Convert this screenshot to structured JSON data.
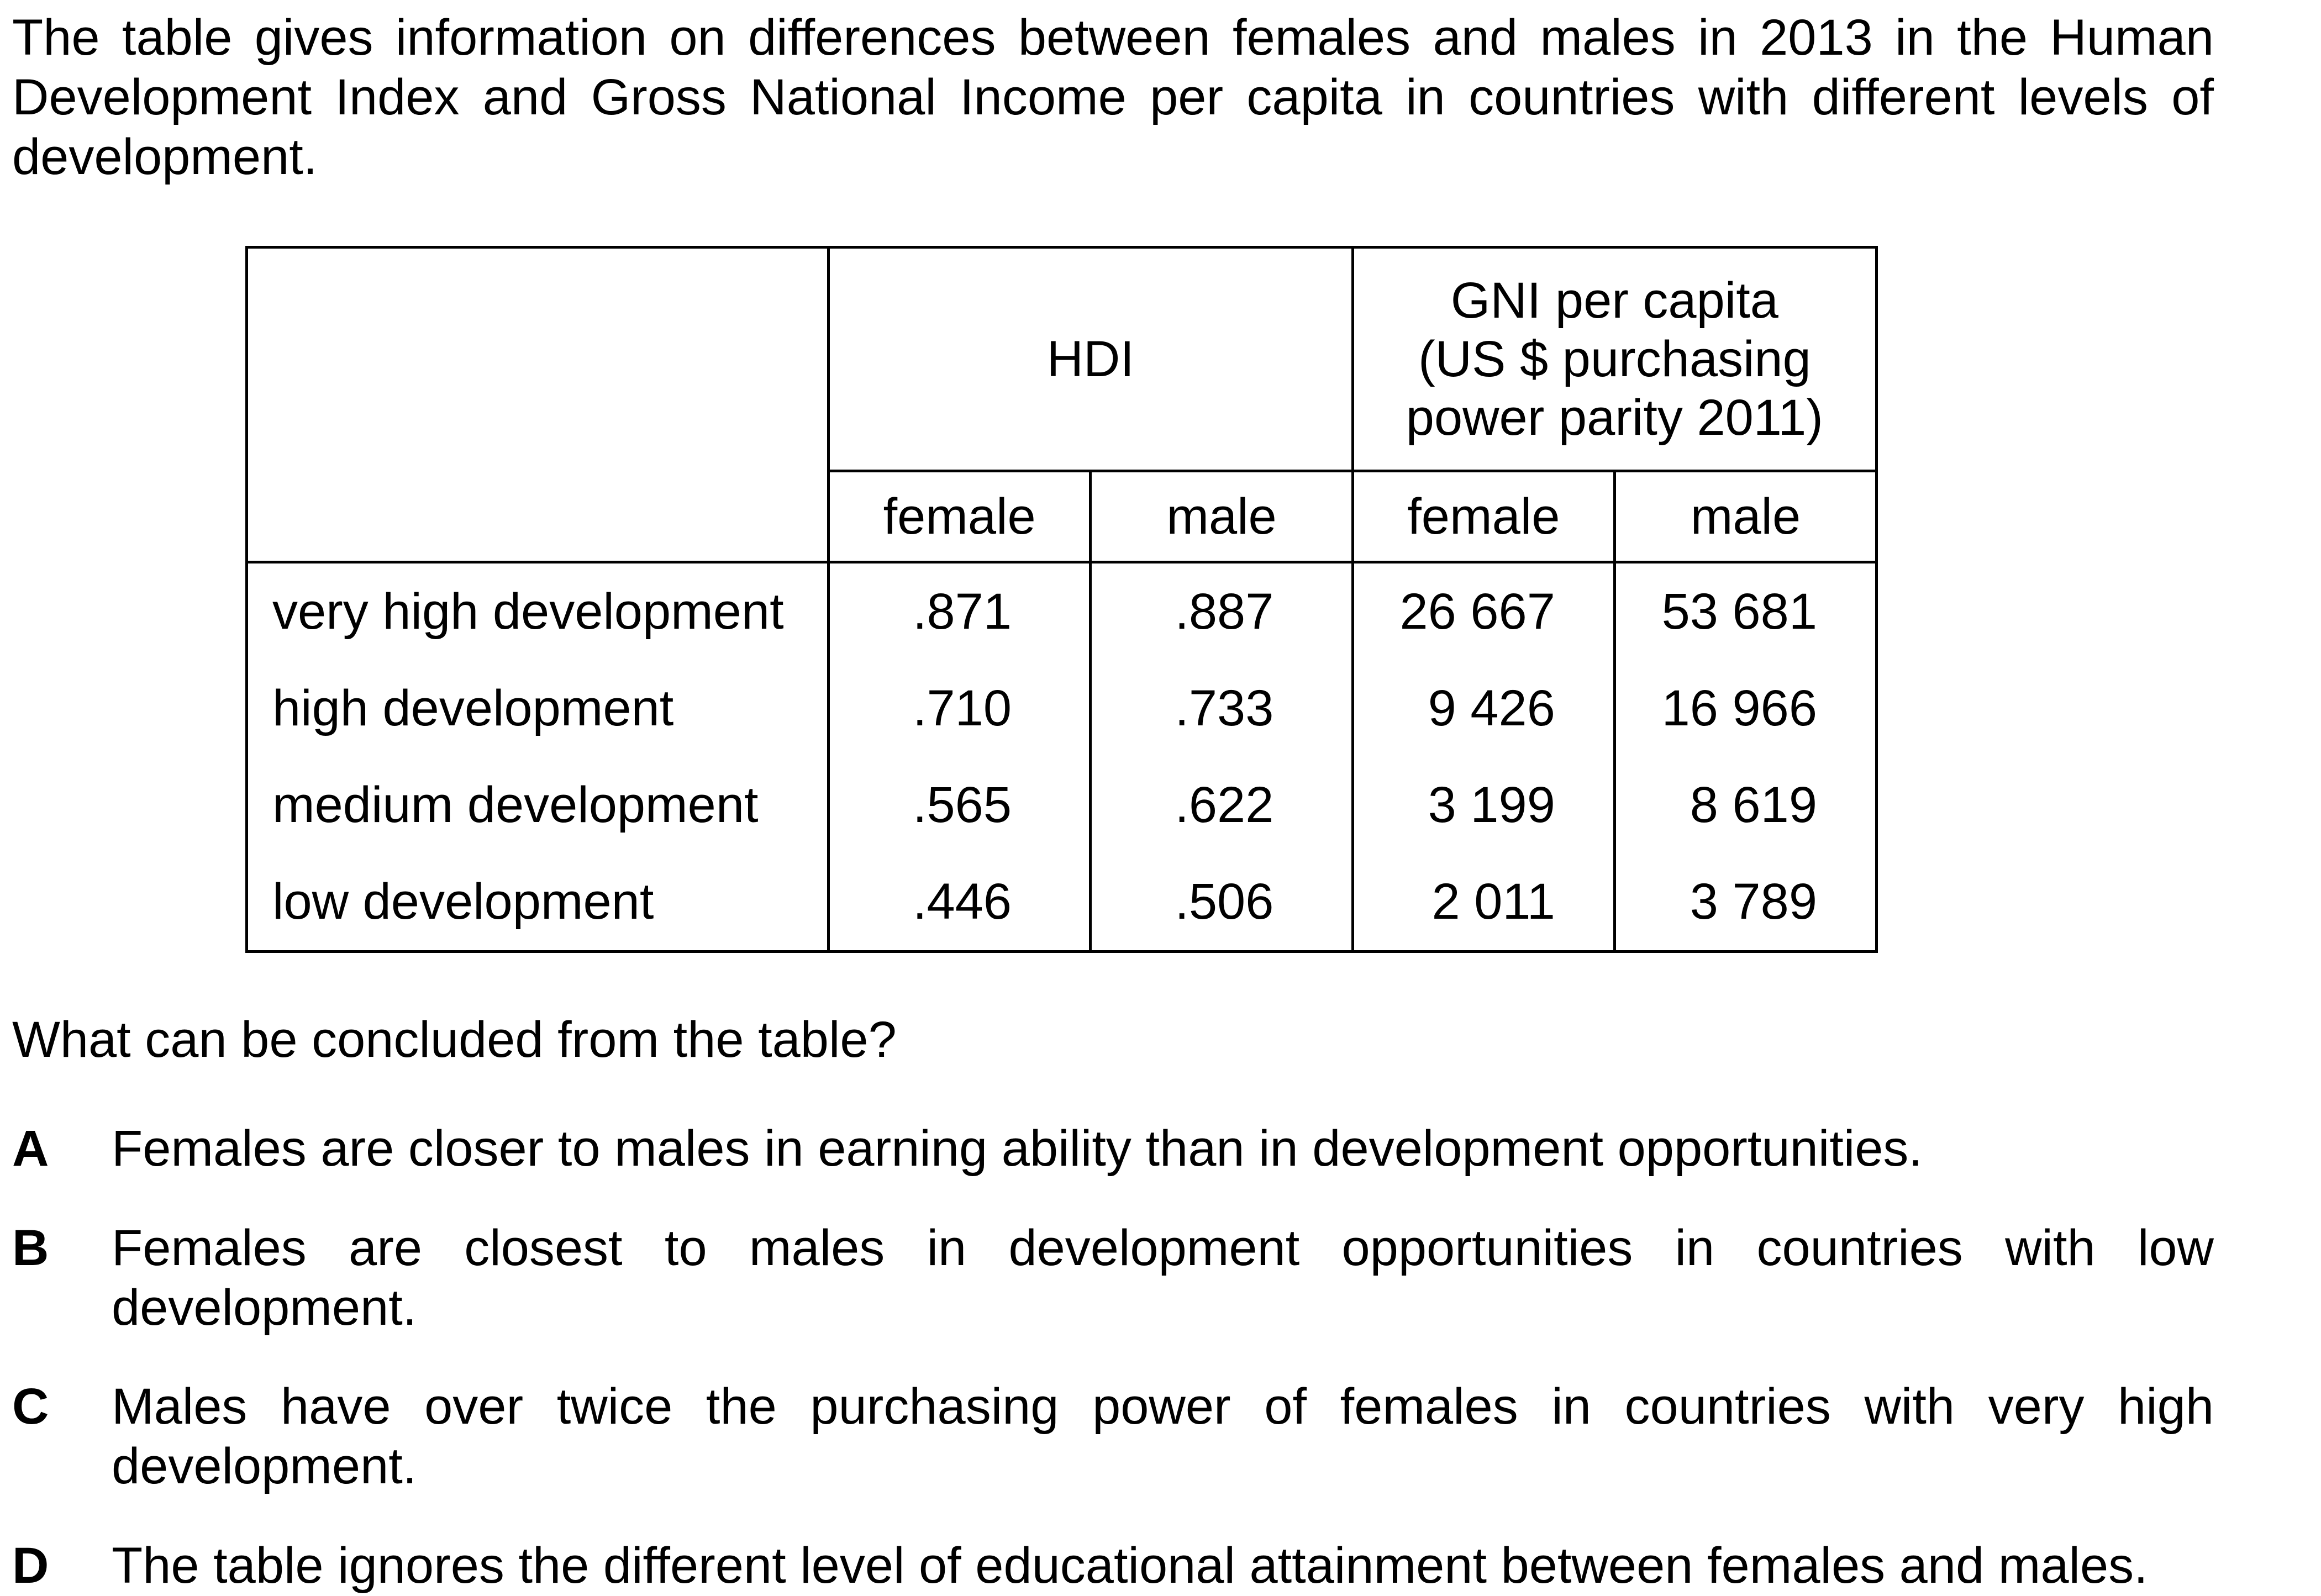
{
  "intro": "The table gives information on differences between females and males in 2013 in the Human Development Index and Gross National Income per capita in countries with different levels of development.",
  "table": {
    "group_headers": {
      "hdi": "HDI",
      "gni_line1": "GNI per capita",
      "gni_line2": "(US $ purchasing",
      "gni_line3": "power parity 2011)"
    },
    "sub_headers": [
      "female",
      "male",
      "female",
      "male"
    ],
    "rows": [
      {
        "label": "very high development",
        "hdi_female": ".871",
        "hdi_male": ".887",
        "gni_female": "26 667",
        "gni_male": "53 681"
      },
      {
        "label": "high development",
        "hdi_female": ".710",
        "hdi_male": ".733",
        "gni_female": "9 426",
        "gni_male": "16 966"
      },
      {
        "label": "medium development",
        "hdi_female": ".565",
        "hdi_male": ".622",
        "gni_female": "3 199",
        "gni_male": "8 619"
      },
      {
        "label": "low development",
        "hdi_female": ".446",
        "hdi_male": ".506",
        "gni_female": "2 011",
        "gni_male": "3 789"
      }
    ]
  },
  "question": "What can be concluded from the table?",
  "options": [
    {
      "letter": "A",
      "text": "Females are closer to males in earning ability than in development opportunities."
    },
    {
      "letter": "B",
      "text": "Females are closest to males in development opportunities in countries with low development."
    },
    {
      "letter": "C",
      "text": "Males have over twice the purchasing power of females in countries with very high development."
    },
    {
      "letter": "D",
      "text": "The table ignores the different level of educational attainment between females and males."
    }
  ]
}
